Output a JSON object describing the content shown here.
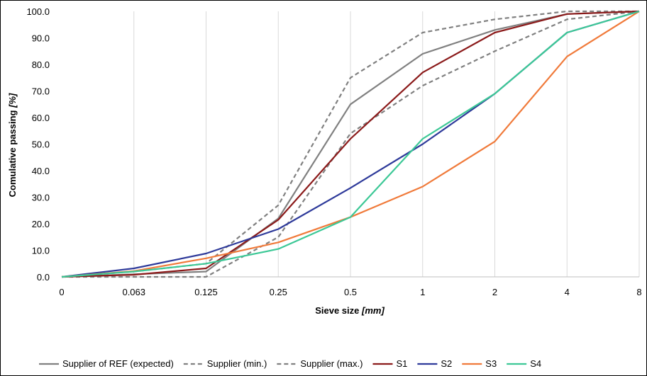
{
  "chart_data": {
    "type": "line",
    "categories": [
      "0",
      "0.063",
      "0.125",
      "0.25",
      "0.5",
      "1",
      "2",
      "4",
      "8"
    ],
    "xlabel": "Sieve size",
    "xlabel_unit": "[mm]",
    "ylabel": "Comulative passing",
    "ylabel_unit": "[%]",
    "ylim": [
      0,
      100
    ],
    "yticks": [
      "0.0",
      "10.0",
      "20.0",
      "30.0",
      "40.0",
      "50.0",
      "60.0",
      "70.0",
      "80.0",
      "90.0",
      "100.0"
    ],
    "grid": "vertical",
    "legend_position": "bottom",
    "series": [
      {
        "name": "Supplier of REF (expected)",
        "color": "#808080",
        "style": "solid",
        "values": [
          0,
          1,
          2,
          22,
          65,
          84,
          93,
          99,
          100
        ]
      },
      {
        "name": "Supplier (min.)",
        "color": "#808080",
        "style": "dashed",
        "values": [
          0,
          0,
          0,
          15,
          54,
          72,
          85,
          97,
          100
        ]
      },
      {
        "name": "Supplier (max.)",
        "color": "#808080",
        "style": "dashed",
        "values": [
          0,
          2,
          5,
          27,
          75,
          92,
          97,
          100,
          100
        ]
      },
      {
        "name": "S1",
        "color": "#8b1a1a",
        "style": "solid",
        "values": [
          0,
          0.8,
          3.2,
          21.5,
          52,
          77,
          92,
          99,
          100
        ]
      },
      {
        "name": "S2",
        "color": "#2e3a9a",
        "style": "solid",
        "values": [
          0,
          3.2,
          8.8,
          18,
          33.5,
          50,
          69,
          92,
          100
        ]
      },
      {
        "name": "S3",
        "color": "#f07a3a",
        "style": "solid",
        "values": [
          0,
          2.2,
          7,
          13,
          22.5,
          34,
          51,
          83,
          100
        ]
      },
      {
        "name": "S4",
        "color": "#3cc896",
        "style": "solid",
        "values": [
          0,
          2,
          5,
          10.5,
          22.5,
          52,
          69,
          92,
          100
        ]
      }
    ]
  }
}
